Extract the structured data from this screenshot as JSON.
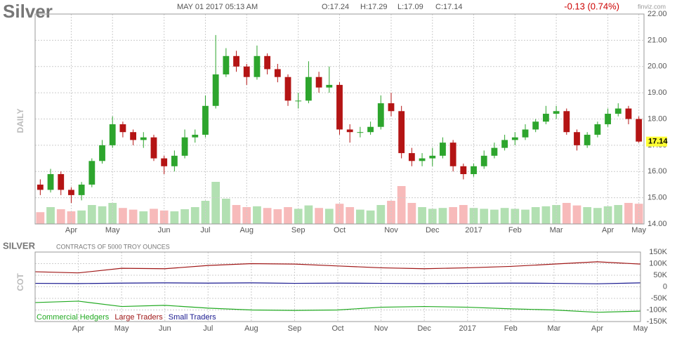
{
  "header": {
    "title": "Silver",
    "date": "MAY 01 2017 05:13 AM",
    "open": "O:17.24",
    "high": "H:17.29",
    "low": "L:17.09",
    "close": "C:17.14",
    "change": "-0.13 (0.74%)",
    "source": "finviz.com"
  },
  "chart_data": [
    {
      "type": "candlestick",
      "ylabel": "DAILY",
      "categories": [
        null,
        null,
        null,
        "Apr",
        null,
        null,
        null,
        "May",
        null,
        null,
        null,
        null,
        "Jun",
        null,
        null,
        null,
        "Jul",
        null,
        null,
        null,
        "Aug",
        null,
        null,
        null,
        null,
        "Sep",
        null,
        null,
        null,
        "Oct",
        null,
        null,
        null,
        null,
        "Nov",
        null,
        null,
        null,
        "Dec",
        null,
        null,
        null,
        "2017",
        null,
        null,
        null,
        "Feb",
        null,
        null,
        null,
        "Mar",
        null,
        null,
        null,
        null,
        "Apr",
        null,
        null,
        "May"
      ],
      "open": [
        15.5,
        15.3,
        15.9,
        15.3,
        15.1,
        15.5,
        16.4,
        17.0,
        17.8,
        17.5,
        17.2,
        17.3,
        16.5,
        16.2,
        16.6,
        17.3,
        17.4,
        18.5,
        19.7,
        20.4,
        20.0,
        19.6,
        20.4,
        19.9,
        19.6,
        18.7,
        18.7,
        19.6,
        19.2,
        19.3,
        17.6,
        17.5,
        17.5,
        17.7,
        18.6,
        18.3,
        16.7,
        16.4,
        16.5,
        16.6,
        17.1,
        16.2,
        15.9,
        16.2,
        16.6,
        16.9,
        17.2,
        17.3,
        17.6,
        17.9,
        18.2,
        18.3,
        17.5,
        17.0,
        17.4,
        17.8,
        18.2,
        18.4,
        18.0
      ],
      "high": [
        15.7,
        16.1,
        16.0,
        15.4,
        15.6,
        16.5,
        17.2,
        18.1,
        17.9,
        17.6,
        17.5,
        17.4,
        16.6,
        16.8,
        17.6,
        17.6,
        18.9,
        21.2,
        20.7,
        20.6,
        20.1,
        20.8,
        20.5,
        20.1,
        19.7,
        19.0,
        20.2,
        19.8,
        20.0,
        19.4,
        17.8,
        17.7,
        17.9,
        18.9,
        19.0,
        18.5,
        16.9,
        16.7,
        16.9,
        17.3,
        17.2,
        16.3,
        16.3,
        16.8,
        17.1,
        17.4,
        17.5,
        17.8,
        18.0,
        18.5,
        18.5,
        18.4,
        17.6,
        17.5,
        17.9,
        18.4,
        18.6,
        18.5,
        18.1
      ],
      "low": [
        15.1,
        15.2,
        15.1,
        14.8,
        14.9,
        15.4,
        16.3,
        16.9,
        17.3,
        17.0,
        16.9,
        16.4,
        15.9,
        16.0,
        16.5,
        17.1,
        17.3,
        18.4,
        19.6,
        19.8,
        19.3,
        19.5,
        19.7,
        19.4,
        18.5,
        18.4,
        18.6,
        19.0,
        19.0,
        17.4,
        17.1,
        17.3,
        17.4,
        17.6,
        18.1,
        16.5,
        16.2,
        16.2,
        16.2,
        16.5,
        16.0,
        15.7,
        15.8,
        16.1,
        16.5,
        16.8,
        17.0,
        17.2,
        17.5,
        17.8,
        18.0,
        17.4,
        16.8,
        16.9,
        17.3,
        17.7,
        18.1,
        17.8,
        17.09
      ],
      "close": [
        15.3,
        15.9,
        15.3,
        15.1,
        15.5,
        16.4,
        17.0,
        17.8,
        17.5,
        17.2,
        17.3,
        16.5,
        16.2,
        16.6,
        17.3,
        17.4,
        18.5,
        19.7,
        20.4,
        20.0,
        19.6,
        20.4,
        19.9,
        19.6,
        18.7,
        18.7,
        19.6,
        19.2,
        19.3,
        17.6,
        17.5,
        17.5,
        17.7,
        18.6,
        18.3,
        16.7,
        16.4,
        16.5,
        16.6,
        17.1,
        16.2,
        15.9,
        16.2,
        16.6,
        16.9,
        17.2,
        17.3,
        17.6,
        17.9,
        18.2,
        18.3,
        17.5,
        17.0,
        17.4,
        17.8,
        18.2,
        18.4,
        18.0,
        17.14
      ],
      "volume": [
        28,
        40,
        35,
        30,
        32,
        45,
        42,
        50,
        38,
        34,
        30,
        36,
        32,
        30,
        35,
        40,
        55,
        100,
        60,
        45,
        40,
        42,
        38,
        35,
        40,
        36,
        44,
        38,
        36,
        48,
        40,
        34,
        32,
        45,
        55,
        90,
        50,
        40,
        36,
        38,
        40,
        45,
        38,
        36,
        34,
        38,
        36,
        34,
        40,
        42,
        45,
        50,
        44,
        40,
        38,
        42,
        45,
        50,
        48
      ],
      "up_color": "#2da52d",
      "down_color": "#b41414",
      "up_volume_color": "#b2e0b2",
      "down_volume_color": "#f7baba",
      "ylim": [
        14,
        22
      ],
      "yticks": [
        {
          "value": 14,
          "label": "14.00"
        },
        {
          "value": 15,
          "label": "15.00"
        },
        {
          "value": 16,
          "label": "16.00"
        },
        {
          "value": 17,
          "label": "17.00"
        },
        {
          "value": 18,
          "label": "18.00"
        },
        {
          "value": 19,
          "label": "19.00"
        },
        {
          "value": 20,
          "label": "20.00"
        },
        {
          "value": 21,
          "label": "21.00"
        },
        {
          "value": 22,
          "label": "22.00"
        }
      ],
      "grid": true
    },
    {
      "type": "line",
      "title": "SILVER",
      "subtitle": "CONTRACTS OF 5000 TROY OUNCES",
      "ylabel": "COT",
      "categories": [
        null,
        "Apr",
        "May",
        "Jun",
        "Jul",
        "Aug",
        "Sep",
        "Oct",
        "Nov",
        "Dec",
        "2017",
        "Feb",
        "Mar",
        "Apr",
        "May"
      ],
      "series": [
        {
          "name": "Commercial Hedgers",
          "color": "#22aa22",
          "values": [
            -68000,
            -62000,
            -85000,
            -80000,
            -92000,
            -100000,
            -102000,
            -100000,
            -88000,
            -85000,
            -88000,
            -95000,
            -100000,
            -110000,
            -105000
          ]
        },
        {
          "name": "Large Traders",
          "color": "#a01818",
          "values": [
            65000,
            60000,
            80000,
            78000,
            92000,
            100000,
            98000,
            90000,
            82000,
            78000,
            82000,
            88000,
            98000,
            108000,
            98000
          ]
        },
        {
          "name": "Small Traders",
          "color": "#1a1a90",
          "values": [
            15000,
            14000,
            16000,
            17000,
            16000,
            17000,
            15000,
            16000,
            15000,
            14000,
            15000,
            16000,
            15000,
            13000,
            17000
          ]
        }
      ],
      "ylim": [
        -150000,
        150000
      ],
      "yticks": [
        {
          "value": 150000,
          "label": "150K"
        },
        {
          "value": 100000,
          "label": "100K"
        },
        {
          "value": 50000,
          "label": "50K"
        },
        0,
        {
          "value": -50000,
          "label": "-50K"
        },
        {
          "value": -100000,
          "label": "-100K"
        },
        {
          "value": -150000,
          "label": "-150K"
        }
      ],
      "grid": true
    }
  ]
}
